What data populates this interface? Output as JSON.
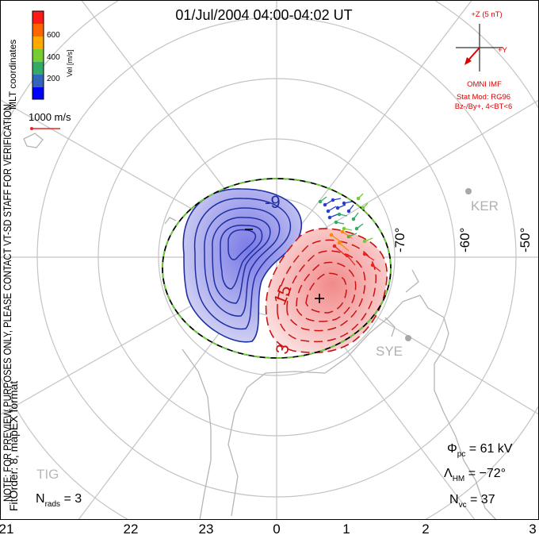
{
  "title": "01/Jul/2004 04:00-04:02 UT",
  "side_note": "NOTE: FOR PREVIEW PURPOSES ONLY, PLEASE CONTACT VT-SD STAFF FOR VERIFICATION.",
  "fit_info": "FitOrder: 8, mapEX format",
  "colorbar": {
    "ticks": [
      "600",
      "400",
      "200"
    ],
    "unit_label": "Vel [m/s]",
    "coord_label": "MLT coordinates",
    "colors": [
      "#ff1a1a",
      "#ff6600",
      "#ffaa00",
      "#77cc33",
      "#33aa66",
      "#3366bb",
      "#0000ff"
    ]
  },
  "vector_scale": "1000 m/s",
  "imf": {
    "z_label": "+Z (5 nT)",
    "y_label": "+Y",
    "source": "OMNI IMF",
    "model_line1": "Stat Mod: RG96",
    "model_line2": "Bz-/By+, 4<BT<6"
  },
  "lat_labels": [
    "-70°",
    "-60°",
    "-50°"
  ],
  "stations": [
    "KER",
    "SYE",
    "TIG"
  ],
  "contour_labels": {
    "neg": "-9",
    "pos1": "15",
    "pos2": "3"
  },
  "stats": {
    "phi_pc": "Φpc = 61 kV",
    "lambda_hm": "ΛHM = -72°",
    "n_vc": "Nvc = 37",
    "n_rads": "Nrads = 3"
  },
  "mlt_labels": [
    "21",
    "22",
    "23",
    "0",
    "1",
    "2",
    "3"
  ],
  "colors": {
    "grid": "#c0c0c0",
    "neg_contour": "#2233aa",
    "pos_contour": "#cc1111",
    "text_red": "#dd0000",
    "boundary_green": "#55cc33"
  }
}
